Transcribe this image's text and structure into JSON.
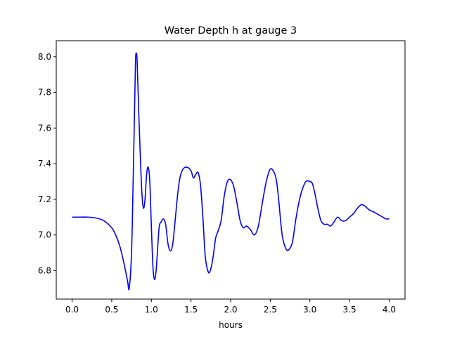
{
  "chart_data": {
    "type": "line",
    "title": "Water Depth h at gauge 3",
    "xlabel": "hours",
    "ylabel": "",
    "xlim": [
      -0.2,
      4.2
    ],
    "ylim": [
      6.64,
      8.09
    ],
    "xticks": [
      0.0,
      0.5,
      1.0,
      1.5,
      2.0,
      2.5,
      3.0,
      3.5,
      4.0
    ],
    "xtick_labels": [
      "0.0",
      "0.5",
      "1.0",
      "1.5",
      "2.0",
      "2.5",
      "3.0",
      "3.5",
      "4.0"
    ],
    "yticks": [
      6.8,
      7.0,
      7.2,
      7.4,
      7.6,
      7.8,
      8.0
    ],
    "ytick_labels": [
      "6.8",
      "7.0",
      "7.2",
      "7.4",
      "7.6",
      "7.8",
      "8.0"
    ],
    "grid": false,
    "series": [
      {
        "color": "#0000ff",
        "x": [
          0.0,
          0.1,
          0.2,
          0.3,
          0.4,
          0.5,
          0.55,
          0.6,
          0.65,
          0.7,
          0.72,
          0.75,
          0.77,
          0.79,
          0.8,
          0.81,
          0.82,
          0.84,
          0.86,
          0.88,
          0.9,
          0.92,
          0.94,
          0.96,
          0.98,
          1.0,
          1.02,
          1.04,
          1.06,
          1.08,
          1.1,
          1.12,
          1.15,
          1.18,
          1.21,
          1.24,
          1.27,
          1.3,
          1.33,
          1.36,
          1.4,
          1.45,
          1.5,
          1.53,
          1.56,
          1.59,
          1.62,
          1.65,
          1.68,
          1.72,
          1.75,
          1.78,
          1.81,
          1.84,
          1.88,
          1.92,
          1.96,
          2.0,
          2.04,
          2.08,
          2.12,
          2.16,
          2.2,
          2.25,
          2.3,
          2.35,
          2.4,
          2.45,
          2.5,
          2.55,
          2.58,
          2.61,
          2.65,
          2.7,
          2.74,
          2.78,
          2.82,
          2.86,
          2.9,
          2.95,
          3.0,
          3.03,
          3.06,
          3.1,
          3.14,
          3.18,
          3.22,
          3.26,
          3.3,
          3.35,
          3.4,
          3.45,
          3.5,
          3.55,
          3.6,
          3.65,
          3.7,
          3.75,
          3.8,
          3.84,
          3.88,
          3.92,
          3.96,
          4.0
        ],
        "y": [
          7.1,
          7.1,
          7.1,
          7.095,
          7.08,
          7.04,
          7.0,
          6.94,
          6.85,
          6.74,
          6.7,
          6.9,
          7.3,
          7.75,
          7.98,
          8.02,
          7.98,
          7.7,
          7.45,
          7.24,
          7.15,
          7.2,
          7.34,
          7.38,
          7.3,
          7.05,
          6.82,
          6.75,
          6.8,
          6.93,
          7.05,
          7.07,
          7.09,
          7.06,
          6.95,
          6.91,
          6.95,
          7.08,
          7.22,
          7.32,
          7.37,
          7.38,
          7.36,
          7.32,
          7.34,
          7.35,
          7.28,
          7.1,
          6.88,
          6.79,
          6.81,
          6.88,
          6.98,
          7.02,
          7.08,
          7.22,
          7.3,
          7.31,
          7.27,
          7.18,
          7.08,
          7.04,
          7.05,
          7.03,
          7.0,
          7.05,
          7.18,
          7.3,
          7.37,
          7.35,
          7.3,
          7.18,
          7.0,
          6.92,
          6.92,
          6.96,
          7.08,
          7.18,
          7.25,
          7.3,
          7.3,
          7.29,
          7.24,
          7.15,
          7.08,
          7.06,
          7.06,
          7.05,
          7.07,
          7.1,
          7.08,
          7.08,
          7.1,
          7.12,
          7.15,
          7.17,
          7.16,
          7.14,
          7.13,
          7.12,
          7.11,
          7.1,
          7.09,
          7.09
        ]
      }
    ]
  }
}
